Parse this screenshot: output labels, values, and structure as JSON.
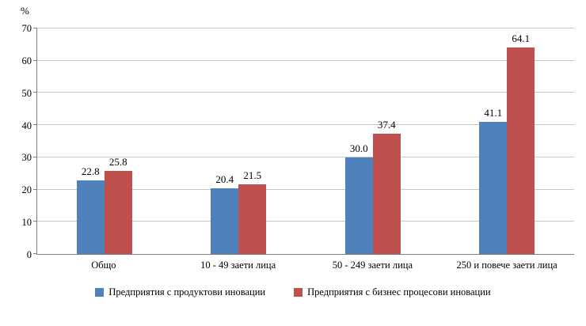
{
  "chart_data": {
    "type": "bar",
    "title": "",
    "ylabel": "%",
    "xlabel": "",
    "ylim": [
      0,
      70
    ],
    "yticks": [
      0,
      10,
      20,
      30,
      40,
      50,
      60,
      70
    ],
    "grid": true,
    "legend_position": "bottom",
    "categories": [
      "Общо",
      "10 - 49 заети лица",
      "50 - 249 заети лица",
      "250 и повече заети лица"
    ],
    "series": [
      {
        "name": "Предприятия с продуктови иновации",
        "color": "#4F81BD",
        "values": [
          22.8,
          20.4,
          30.0,
          41.1
        ]
      },
      {
        "name": "Предприятия с бизнес процесови иновации",
        "color": "#C0504D",
        "values": [
          25.8,
          21.5,
          37.4,
          64.1
        ]
      }
    ]
  }
}
